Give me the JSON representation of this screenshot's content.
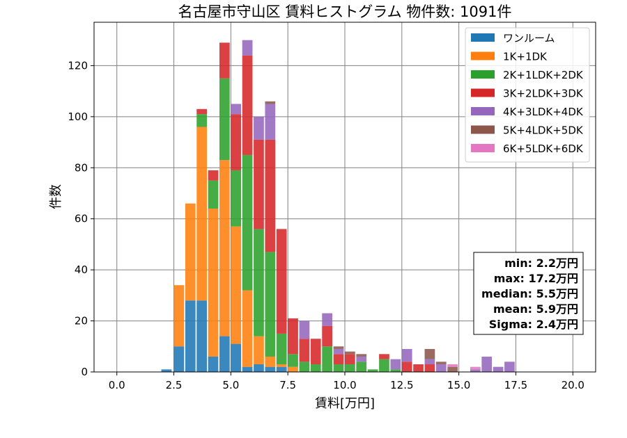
{
  "chart_data": {
    "type": "bar",
    "stacked": true,
    "title": "名古屋市守山区 賃料ヒストグラム  物件数: 1091件",
    "xlabel": "賃料[万円]",
    "ylabel": "件数",
    "xlim": [
      -1.0,
      21.0
    ],
    "ylim": [
      0,
      137
    ],
    "xticks": [
      0.0,
      2.5,
      5.0,
      7.5,
      10.0,
      12.5,
      15.0,
      17.5,
      20.0
    ],
    "xtick_labels": [
      "0.0",
      "2.5",
      "5.0",
      "7.5",
      "10.0",
      "12.5",
      "15.0",
      "17.5",
      "20.0"
    ],
    "yticks": [
      0,
      20,
      40,
      60,
      80,
      100,
      120
    ],
    "ytick_labels": [
      "0",
      "20",
      "40",
      "60",
      "80",
      "100",
      "120"
    ],
    "grid": true,
    "legend_position": "top-right",
    "bins": [
      1.95,
      2.5,
      3.0,
      3.5,
      4.0,
      4.5,
      5.0,
      5.5,
      6.0,
      6.5,
      7.0,
      7.5,
      8.0,
      8.5,
      9.0,
      9.5,
      10.0,
      10.5,
      11.0,
      11.5,
      12.0,
      12.5,
      13.0,
      13.5,
      14.0,
      14.5,
      15.5,
      16.0,
      16.5,
      17.0
    ],
    "series": [
      {
        "name": "ワンルーム",
        "color": "#1f77b4",
        "values": [
          1,
          10,
          28,
          28,
          6,
          14,
          11,
          2,
          3,
          2,
          2,
          0,
          0,
          0,
          0,
          0,
          0,
          0,
          0,
          0,
          0,
          0,
          0,
          0,
          0,
          0,
          0,
          0,
          0,
          0
        ]
      },
      {
        "name": "1K+1DK",
        "color": "#ff7f0e",
        "values": [
          0,
          24,
          38,
          68,
          58,
          69,
          46,
          30,
          11,
          4,
          1,
          2,
          0,
          0,
          0,
          0,
          0,
          0,
          0,
          0,
          0,
          0,
          0,
          0,
          0,
          0,
          0,
          0,
          0,
          0
        ]
      },
      {
        "name": "2K+1LDK+2DK",
        "color": "#2ca02c",
        "values": [
          0,
          0,
          0,
          5,
          11,
          32,
          22,
          53,
          42,
          41,
          12,
          5,
          4,
          3,
          10,
          3,
          3,
          4,
          1,
          5,
          1,
          0,
          0,
          0,
          0,
          0,
          0,
          0,
          0,
          0
        ]
      },
      {
        "name": "3K+2LDK+3DK",
        "color": "#d62728",
        "values": [
          0,
          0,
          0,
          2,
          4,
          14,
          22,
          39,
          35,
          44,
          41,
          14,
          9,
          10,
          8,
          4,
          4,
          0,
          0,
          2,
          0,
          4,
          3,
          3,
          0,
          0,
          0,
          0,
          0,
          0
        ]
      },
      {
        "name": "4K+3LDK+4DK",
        "color": "#9467bd",
        "values": [
          0,
          0,
          0,
          0,
          0,
          0,
          4,
          6,
          9,
          14,
          0,
          0,
          7,
          0,
          5,
          2,
          0,
          2,
          0,
          0,
          4,
          5,
          0,
          2,
          3,
          0,
          1,
          6,
          2,
          4
        ]
      },
      {
        "name": "5K+4LDK+5DK",
        "color": "#8c564b",
        "values": [
          0,
          0,
          0,
          0,
          0,
          0,
          0,
          0,
          0,
          1,
          0,
          0,
          0,
          0,
          0,
          1,
          1,
          1,
          0,
          0,
          0,
          0,
          0,
          4,
          1,
          2,
          0,
          0,
          0,
          0
        ]
      },
      {
        "name": "6K+5LDK+6DK",
        "color": "#e377c2",
        "values": [
          0,
          0,
          0,
          0,
          0,
          0,
          0,
          0,
          0,
          0,
          0,
          0,
          0,
          0,
          0,
          0,
          0,
          0,
          0,
          0,
          0,
          0,
          0,
          0,
          0,
          1,
          1,
          0,
          0,
          0
        ]
      }
    ],
    "stats": [
      "min: 2.2万円",
      "max: 17.2万円",
      "median: 5.5万円",
      "mean: 5.9万円",
      "Sigma: 2.4万円"
    ]
  }
}
